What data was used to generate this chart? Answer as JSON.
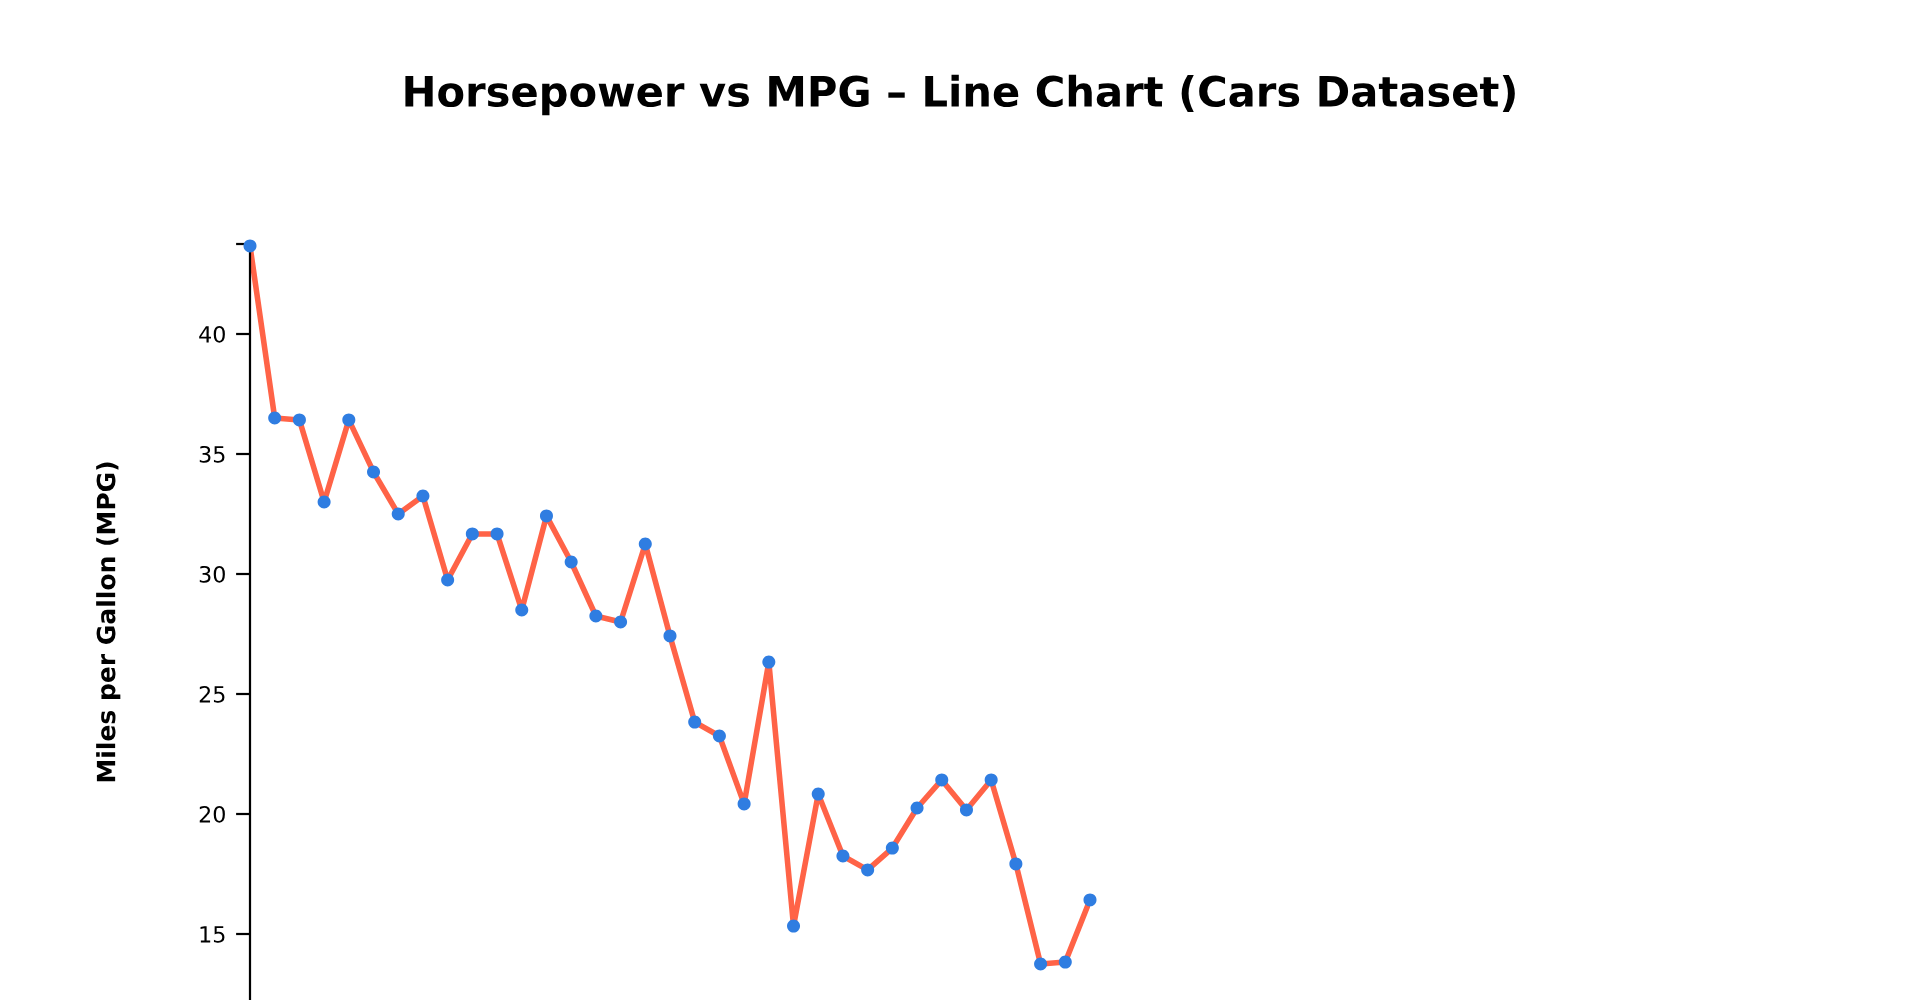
{
  "chart_data": {
    "type": "line",
    "title": "Horsepower vs MPG – Line Chart (Cars Dataset)",
    "ylabel": "Miles per Gallon (MPG)",
    "categories": [
      null,
      null,
      null,
      null,
      null,
      null,
      null,
      null,
      null,
      null,
      null,
      null,
      null,
      null,
      null,
      null,
      null,
      null,
      null,
      null,
      null,
      null,
      null,
      null,
      null,
      null,
      null,
      null,
      null,
      null,
      null,
      null,
      null,
      null,
      null
    ],
    "series": [
      {
        "color": "#ff6347",
        "values": [
          43.67,
          36.5,
          36.42,
          33.0,
          36.42,
          34.25,
          32.5,
          33.25,
          29.75,
          31.67,
          31.67,
          28.5,
          32.42,
          30.5,
          28.25,
          28.0,
          31.25,
          27.42,
          23.83,
          23.25,
          20.42,
          26.33,
          15.33,
          20.83,
          18.25,
          17.67,
          18.58,
          20.25,
          21.42,
          20.17,
          21.42,
          17.92,
          13.75,
          13.83,
          16.42
        ]
      }
    ],
    "marker": "circle",
    "line_style": "solid",
    "ylim": [
      12.25,
      43.75
    ],
    "yticks": [
      15,
      20,
      25,
      30,
      35,
      40,
      {
        "value": 43.75,
        "label": null
      }
    ],
    "tick_labels": "y",
    "grid": false,
    "legend": false
  }
}
